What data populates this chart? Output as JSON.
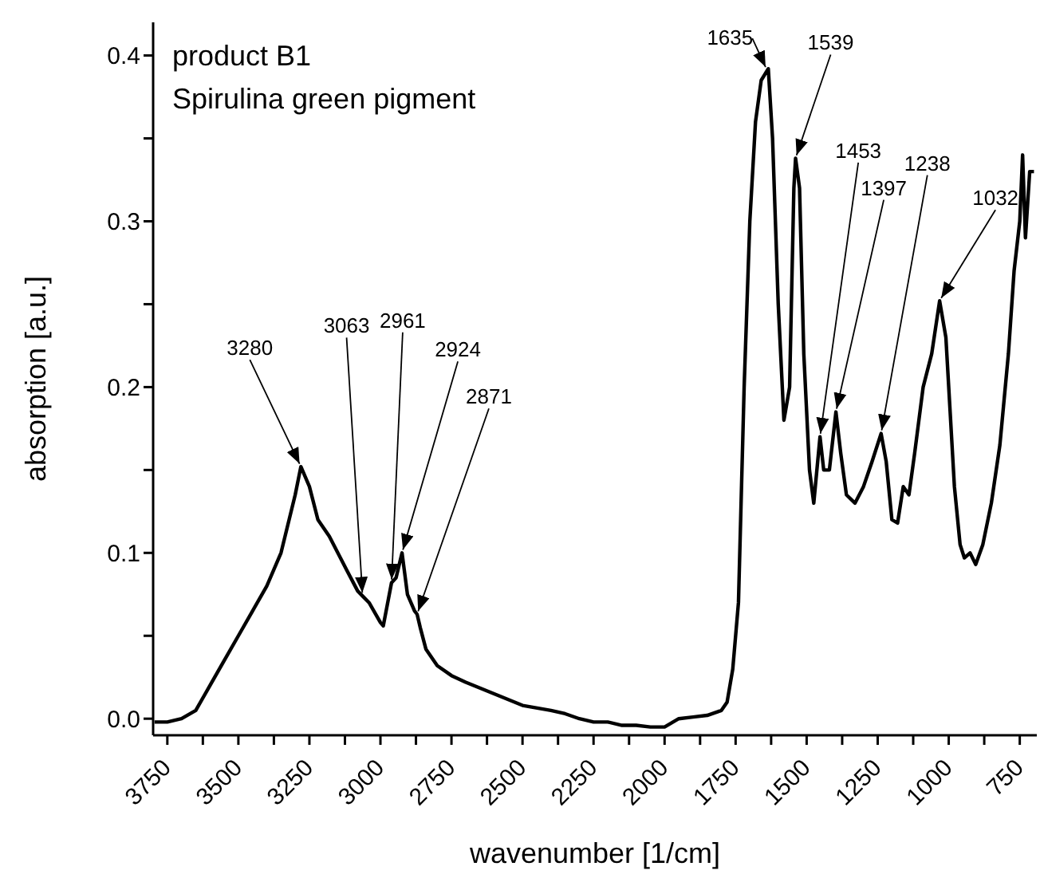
{
  "chart_data": {
    "type": "line",
    "xlabel": "wavenumber [1/cm]",
    "ylabel": "absorption [a.u.]",
    "annotations": [
      "product B1",
      "Spirulina green pigment",
      {
        "text": "3280",
        "x": 3280,
        "y": 0.152
      },
      {
        "text": "3063",
        "x": 3063,
        "y": 0.074
      },
      {
        "text": "2961",
        "x": 2961,
        "y": 0.082
      },
      {
        "text": "2924",
        "x": 2924,
        "y": 0.1
      },
      {
        "text": "2871",
        "x": 2871,
        "y": 0.063
      },
      {
        "text": "1635",
        "x": 1635,
        "y": 0.392
      },
      {
        "text": "1539",
        "x": 1539,
        "y": 0.338
      },
      {
        "text": "1453",
        "x": 1453,
        "y": 0.17
      },
      {
        "text": "1397",
        "x": 1397,
        "y": 0.185
      },
      {
        "text": "1238",
        "x": 1238,
        "y": 0.172
      },
      {
        "text": "1032",
        "x": 1032,
        "y": 0.252
      }
    ],
    "x": [
      3795,
      3750,
      3700,
      3650,
      3600,
      3550,
      3500,
      3450,
      3400,
      3350,
      3300,
      3280,
      3250,
      3220,
      3180,
      3120,
      3080,
      3063,
      3040,
      3000,
      2990,
      2961,
      2945,
      2924,
      2905,
      2880,
      2871,
      2860,
      2840,
      2800,
      2750,
      2700,
      2600,
      2500,
      2400,
      2350,
      2300,
      2250,
      2200,
      2150,
      2100,
      2050,
      2000,
      1950,
      1900,
      1850,
      1800,
      1780,
      1760,
      1740,
      1720,
      1700,
      1680,
      1660,
      1635,
      1620,
      1600,
      1580,
      1560,
      1545,
      1539,
      1525,
      1510,
      1490,
      1475,
      1453,
      1440,
      1420,
      1397,
      1380,
      1360,
      1330,
      1300,
      1270,
      1238,
      1220,
      1200,
      1180,
      1160,
      1140,
      1120,
      1090,
      1060,
      1032,
      1010,
      980,
      960,
      945,
      925,
      905,
      880,
      850,
      820,
      790,
      770,
      750,
      740,
      730,
      715,
      700
    ],
    "series": [
      {
        "color": "#000000",
        "values": [
          -0.002,
          -0.002,
          0,
          0.005,
          0.02,
          0.035,
          0.05,
          0.065,
          0.08,
          0.1,
          0.135,
          0.152,
          0.14,
          0.12,
          0.11,
          0.09,
          0.077,
          0.074,
          0.07,
          0.058,
          0.056,
          0.082,
          0.085,
          0.1,
          0.075,
          0.065,
          0.063,
          0.055,
          0.042,
          0.032,
          0.026,
          0.022,
          0.015,
          0.008,
          0.005,
          0.003,
          0,
          -0.002,
          -0.002,
          -0.004,
          -0.004,
          -0.005,
          -0.005,
          0,
          0.001,
          0.002,
          0.005,
          0.01,
          0.03,
          0.07,
          0.2,
          0.3,
          0.36,
          0.385,
          0.392,
          0.35,
          0.25,
          0.18,
          0.2,
          0.32,
          0.338,
          0.32,
          0.22,
          0.15,
          0.13,
          0.17,
          0.15,
          0.15,
          0.185,
          0.16,
          0.135,
          0.13,
          0.14,
          0.155,
          0.172,
          0.155,
          0.12,
          0.118,
          0.14,
          0.135,
          0.16,
          0.2,
          0.22,
          0.252,
          0.23,
          0.14,
          0.105,
          0.097,
          0.1,
          0.093,
          0.105,
          0.13,
          0.165,
          0.22,
          0.27,
          0.3,
          0.34,
          0.29,
          0.33,
          0.33
        ]
      }
    ],
    "xlim": [
      3800,
      690
    ],
    "xticks": [
      {
        "value": 3750,
        "label": "3750"
      },
      {
        "value": 3625,
        "label": null
      },
      {
        "value": 3500,
        "label": "3500"
      },
      {
        "value": 3375,
        "label": null
      },
      {
        "value": 3250,
        "label": "3250"
      },
      {
        "value": 3125,
        "label": null
      },
      {
        "value": 3000,
        "label": "3000"
      },
      {
        "value": 2875,
        "label": null
      },
      {
        "value": 2750,
        "label": "2750"
      },
      {
        "value": 2625,
        "label": null
      },
      {
        "value": 2500,
        "label": "2500"
      },
      {
        "value": 2375,
        "label": null
      },
      {
        "value": 2250,
        "label": "2250"
      },
      {
        "value": 2125,
        "label": null
      },
      {
        "value": 2000,
        "label": "2000"
      },
      {
        "value": 1875,
        "label": null
      },
      {
        "value": 1750,
        "label": "1750"
      },
      {
        "value": 1625,
        "label": null
      },
      {
        "value": 1500,
        "label": "1500"
      },
      {
        "value": 1375,
        "label": null
      },
      {
        "value": 1250,
        "label": "1250"
      },
      {
        "value": 1125,
        "label": null
      },
      {
        "value": 1000,
        "label": "1000"
      },
      {
        "value": 875,
        "label": null
      },
      {
        "value": 750,
        "label": "750"
      }
    ],
    "ylim": [
      -0.01,
      0.42
    ],
    "yticks": [
      {
        "value": 0,
        "label": "0.0"
      },
      {
        "value": 0.05,
        "label": null
      },
      {
        "value": 0.1,
        "label": "0.1"
      },
      {
        "value": 0.15,
        "label": null
      },
      {
        "value": 0.2,
        "label": "0.2"
      },
      {
        "value": 0.25,
        "label": null
      },
      {
        "value": 0.3,
        "label": "0.3"
      },
      {
        "value": 0.35,
        "label": null
      },
      {
        "value": 0.4,
        "label": "0.4"
      }
    ],
    "grid": false,
    "legend": false,
    "marker": "none",
    "line_style": "solid"
  }
}
